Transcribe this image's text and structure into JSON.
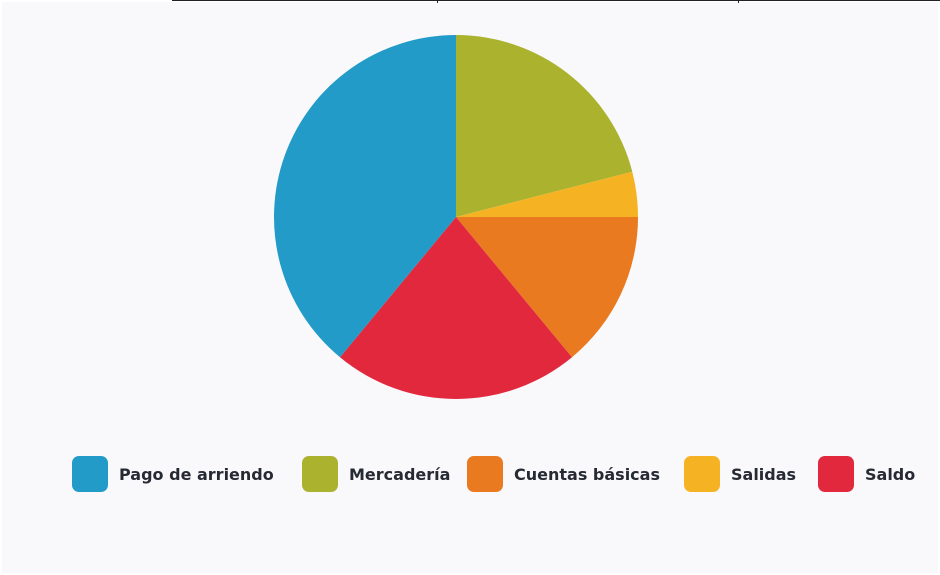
{
  "chart_data": {
    "type": "pie",
    "title": "",
    "start_angle": "12 o'clock",
    "direction": "clockwise",
    "categories": [
      "Pago de arriendo",
      "Mercadería",
      "Cuentas básicas",
      "Salidas",
      "Saldo"
    ],
    "series": [
      {
        "name": "",
        "values": [
          39,
          21,
          14,
          4,
          22
        ]
      }
    ],
    "slice_order": [
      "Mercadería",
      "Salidas",
      "Cuentas básicas",
      "Saldo",
      "Pago de arriendo"
    ],
    "colors": {
      "Pago de arriendo": "#229bc8",
      "Mercadería": "#abb22d",
      "Cuentas básicas": "#ea7a20",
      "Salidas": "#f5b323",
      "Saldo": "#e2283d"
    },
    "legend_position": "bottom"
  }
}
